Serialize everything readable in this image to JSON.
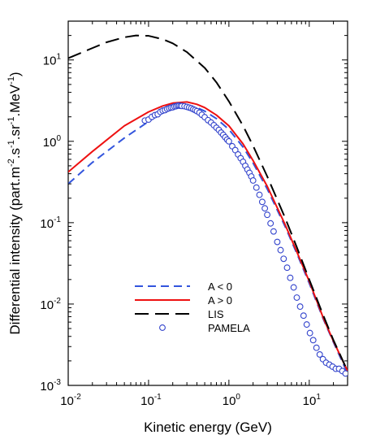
{
  "chart_data": {
    "type": "line",
    "xlabel": "Kinetic energy (GeV)",
    "ylabel_parts": [
      "Differential intensity (part.m",
      "-2",
      ".s",
      "-1",
      ".sr",
      "-1",
      ".MeV",
      "-1",
      ")"
    ],
    "x_scale": "log",
    "y_scale": "log",
    "xlim": [
      0.01,
      30
    ],
    "ylim": [
      0.001,
      30
    ],
    "x_ticks": [
      {
        "base": "10",
        "exp": "-2",
        "value": 0.01
      },
      {
        "base": "10",
        "exp": "-1",
        "value": 0.1
      },
      {
        "base": "10",
        "exp": "0",
        "value": 1
      },
      {
        "base": "10",
        "exp": "1",
        "value": 10
      }
    ],
    "y_ticks": [
      {
        "base": "10",
        "exp": "-3",
        "value": 0.001
      },
      {
        "base": "10",
        "exp": "-2",
        "value": 0.01
      },
      {
        "base": "10",
        "exp": "-1",
        "value": 0.1
      },
      {
        "base": "10",
        "exp": "0",
        "value": 1
      },
      {
        "base": "10",
        "exp": "1",
        "value": 10
      }
    ],
    "grid": false,
    "legend_position": "bottom-center",
    "series": [
      {
        "name": "A < 0",
        "style": "dashed",
        "color": "#3355dd",
        "x": [
          0.01,
          0.02,
          0.05,
          0.1,
          0.15,
          0.2,
          0.3,
          0.4,
          0.5,
          0.7,
          1.0,
          1.5,
          2.0,
          3.0,
          5.0,
          7.0,
          10.0,
          15.0,
          20.0,
          30.0
        ],
        "y": [
          0.3,
          0.55,
          1.1,
          1.75,
          2.25,
          2.55,
          2.72,
          2.6,
          2.35,
          1.9,
          1.4,
          0.85,
          0.54,
          0.26,
          0.09,
          0.042,
          0.018,
          0.0065,
          0.0034,
          0.0014
        ]
      },
      {
        "name": "A > 0",
        "style": "solid",
        "color": "#ee1111",
        "x": [
          0.01,
          0.02,
          0.05,
          0.1,
          0.15,
          0.2,
          0.3,
          0.4,
          0.5,
          0.7,
          1.0,
          1.5,
          2.0,
          3.0,
          5.0,
          7.0,
          10.0,
          15.0,
          20.0,
          30.0
        ],
        "y": [
          0.42,
          0.75,
          1.55,
          2.3,
          2.72,
          2.95,
          3.05,
          2.85,
          2.6,
          2.1,
          1.55,
          0.93,
          0.58,
          0.28,
          0.095,
          0.044,
          0.019,
          0.0067,
          0.0035,
          0.0015
        ]
      },
      {
        "name": "LIS",
        "style": "long-dashed",
        "color": "#000000",
        "x": [
          0.01,
          0.02,
          0.03,
          0.05,
          0.07,
          0.1,
          0.15,
          0.2,
          0.3,
          0.5,
          0.7,
          1.0,
          1.5,
          2.0,
          3.0,
          5.0,
          7.0,
          10.0,
          15.0,
          20.0,
          30.0
        ],
        "y": [
          10.5,
          14.0,
          16.5,
          19.0,
          20.0,
          19.8,
          18.0,
          16.0,
          12.5,
          8.0,
          5.3,
          3.1,
          1.55,
          0.88,
          0.37,
          0.115,
          0.05,
          0.02,
          0.0072,
          0.0036,
          0.0015
        ]
      },
      {
        "name": "PAMELA",
        "style": "markers",
        "color": "#3344cc",
        "x": [
          0.09,
          0.1,
          0.11,
          0.12,
          0.13,
          0.14,
          0.15,
          0.16,
          0.17,
          0.18,
          0.19,
          0.2,
          0.21,
          0.22,
          0.23,
          0.24,
          0.25,
          0.26,
          0.28,
          0.3,
          0.32,
          0.34,
          0.36,
          0.38,
          0.4,
          0.43,
          0.46,
          0.5,
          0.55,
          0.6,
          0.65,
          0.7,
          0.75,
          0.8,
          0.85,
          0.9,
          0.95,
          1.0,
          1.1,
          1.2,
          1.3,
          1.4,
          1.5,
          1.6,
          1.7,
          1.8,
          1.9,
          2.0,
          2.2,
          2.4,
          2.6,
          2.8,
          3.0,
          3.3,
          3.6,
          4.0,
          4.4,
          4.8,
          5.3,
          5.8,
          6.4,
          7.0,
          7.7,
          8.5,
          9.3,
          10.2,
          11.2,
          12.3,
          13.5,
          14.8,
          16.2,
          17.8,
          19.5,
          21.4,
          23.5,
          25.8,
          28.3
        ],
        "y": [
          1.8,
          1.85,
          2.0,
          2.1,
          2.15,
          2.3,
          2.38,
          2.42,
          2.5,
          2.55,
          2.6,
          2.62,
          2.68,
          2.7,
          2.74,
          2.75,
          2.73,
          2.72,
          2.7,
          2.65,
          2.6,
          2.55,
          2.48,
          2.42,
          2.35,
          2.25,
          2.12,
          1.98,
          1.82,
          1.7,
          1.58,
          1.47,
          1.38,
          1.28,
          1.2,
          1.12,
          1.05,
          1.0,
          0.87,
          0.78,
          0.69,
          0.62,
          0.56,
          0.5,
          0.45,
          0.41,
          0.37,
          0.33,
          0.27,
          0.22,
          0.18,
          0.15,
          0.125,
          0.098,
          0.078,
          0.058,
          0.046,
          0.036,
          0.028,
          0.021,
          0.016,
          0.012,
          0.0093,
          0.0072,
          0.0056,
          0.0044,
          0.0036,
          0.0029,
          0.0024,
          0.0021,
          0.0019,
          0.0018,
          0.0017,
          0.0016,
          0.0016,
          0.0015,
          0.0014
        ]
      }
    ]
  }
}
